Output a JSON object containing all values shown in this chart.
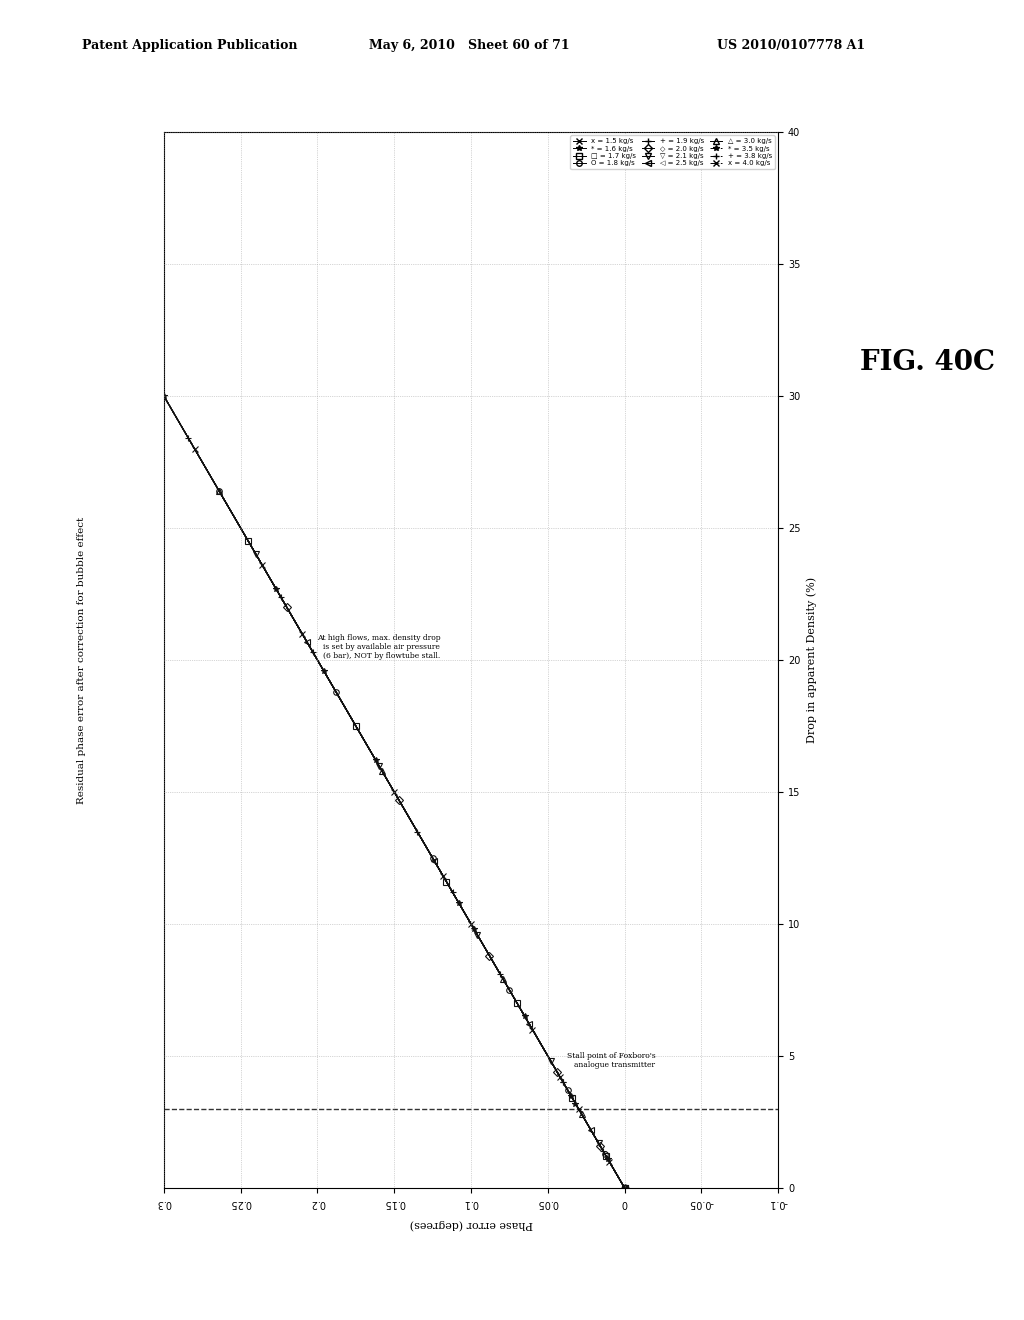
{
  "header_left": "Patent Application Publication",
  "header_mid": "May 6, 2010   Sheet 60 of 71",
  "header_right": "US 2010/0107778 A1",
  "fig_label": "FIG. 40C",
  "title": "Residual phase error after correction for bubble effect",
  "x_axis_label": "Phase error (degrees)",
  "y_axis_label": "Drop in apparent Density (%)",
  "annotation1": "At high flows, max. density drop\nis set by available air pressure\n(6 bar), NOT by flowtube stall.",
  "annotation2": "Stall point of Foxboro's\nanalogue transmitter",
  "xmin": -0.1,
  "xmax": 0.3,
  "ymin": 0,
  "ymax": 40,
  "dashed_line_x": 0.0,
  "background_color": "#ffffff",
  "grid_color": "#999999",
  "series": [
    {
      "label": "x = 1.5 kg/s",
      "marker": "x",
      "ls": "-",
      "x": [
        0.0,
        0.01,
        0.03,
        0.06,
        0.1,
        0.15,
        0.21,
        0.28
      ],
      "y": [
        0.0,
        1.0,
        3.0,
        6.0,
        10.0,
        15.0,
        21.0,
        28.0
      ]
    },
    {
      "label": "* = 1.6 kg/s",
      "marker": "*",
      "ls": "-",
      "x": [
        0.0,
        0.011,
        0.032,
        0.065,
        0.108,
        0.162,
        0.227,
        0.3
      ],
      "y": [
        0.0,
        1.1,
        3.2,
        6.5,
        10.8,
        16.2,
        22.7,
        30.0
      ]
    },
    {
      "label": "□ = 1.7 kg/s",
      "marker": "s",
      "ls": "-",
      "x": [
        0.0,
        0.012,
        0.034,
        0.07,
        0.116,
        0.175,
        0.245
      ],
      "y": [
        0.0,
        1.2,
        3.4,
        7.0,
        11.6,
        17.5,
        24.5
      ]
    },
    {
      "label": "O = 1.8 kg/s",
      "marker": "o",
      "ls": "-",
      "x": [
        0.0,
        0.013,
        0.037,
        0.075,
        0.125,
        0.188,
        0.264
      ],
      "y": [
        0.0,
        1.3,
        3.7,
        7.5,
        12.5,
        18.8,
        26.4
      ]
    },
    {
      "label": "+ = 1.9 kg/s",
      "marker": "+",
      "ls": "-",
      "x": [
        0.0,
        0.014,
        0.04,
        0.081,
        0.135,
        0.203,
        0.284
      ],
      "y": [
        0.0,
        1.4,
        4.0,
        8.1,
        13.5,
        20.3,
        28.4
      ]
    },
    {
      "label": "◇ = 2.0 kg/s",
      "marker": "D",
      "ls": "-",
      "x": [
        0.0,
        0.016,
        0.044,
        0.088,
        0.147,
        0.22,
        0.307
      ],
      "y": [
        0.0,
        1.6,
        4.4,
        8.8,
        14.7,
        22.0,
        30.7
      ]
    },
    {
      "label": "▽ = 2.1 kg/s",
      "marker": "v",
      "ls": "-",
      "x": [
        0.0,
        0.017,
        0.048,
        0.096,
        0.16,
        0.24,
        0.335
      ],
      "y": [
        0.0,
        1.7,
        4.8,
        9.6,
        16.0,
        24.0,
        33.5
      ]
    },
    {
      "label": "◁ = 2.5 kg/s",
      "marker": "<",
      "ls": "-",
      "x": [
        0.0,
        0.022,
        0.062,
        0.124,
        0.207,
        0.31
      ],
      "y": [
        0.0,
        2.2,
        6.2,
        12.4,
        20.7,
        31.0
      ]
    },
    {
      "label": "△ = 3.0 kg/s",
      "marker": "^",
      "ls": "-",
      "x": [
        0.0,
        0.028,
        0.079,
        0.158,
        0.264
      ],
      "y": [
        0.0,
        2.8,
        7.9,
        15.8,
        26.4
      ]
    },
    {
      "label": "* = 3.5 kg/s",
      "marker": "*",
      "ls": "--",
      "x": [
        0.0,
        0.035,
        0.098,
        0.196,
        0.327
      ],
      "y": [
        0.0,
        3.5,
        9.8,
        19.6,
        32.7
      ]
    },
    {
      "label": "+ = 3.8 kg/s",
      "marker": "+",
      "ls": "--",
      "x": [
        0.0,
        0.04,
        0.112,
        0.224,
        0.373
      ],
      "y": [
        0.0,
        4.0,
        11.2,
        22.4,
        37.3
      ]
    },
    {
      "label": "x = 4.0 kg/s",
      "marker": "x",
      "ls": "-.",
      "x": [
        0.0,
        0.042,
        0.118,
        0.236,
        0.393
      ],
      "y": [
        0.0,
        4.2,
        11.8,
        23.6,
        39.3
      ]
    }
  ],
  "legend_groups": [
    [
      {
        "label": "x = 1.5 kg/s",
        "marker": "x",
        "ls": "-"
      },
      {
        "label": "* = 1.6 kg/s",
        "marker": "*",
        "ls": "-"
      },
      {
        "□ = 1.7 kg/s": "□ = 1.7 kg/s",
        "label": "□ = 1.7 kg/s",
        "marker": "s",
        "ls": "-"
      },
      {
        "label": "O = 1.8 kg/s",
        "marker": "o",
        "ls": "-"
      }
    ],
    [
      {
        "label": "+ = 1.9 kg/s",
        "marker": "+",
        "ls": "-"
      },
      {
        "label": "◇ = 2.0 kg/s",
        "marker": "D",
        "ls": "-"
      },
      {
        "label": "▽ = 2.1 kg/s",
        "marker": "v",
        "ls": "-"
      },
      {
        "label": "◁ = 2.5 kg/s",
        "marker": "<",
        "ls": "-"
      }
    ],
    [
      {
        "label": "△ = 3.0 kg/s",
        "marker": "^",
        "ls": "-"
      },
      {
        "label": "* = 3.5 kg/s",
        "marker": "*",
        "ls": "--"
      },
      {
        "label": "+ = 3.8 kg/s",
        "marker": "+",
        "ls": "--"
      },
      {
        "label": "x = 4.0 kg/s",
        "marker": "x",
        "ls": "-."
      }
    ]
  ]
}
